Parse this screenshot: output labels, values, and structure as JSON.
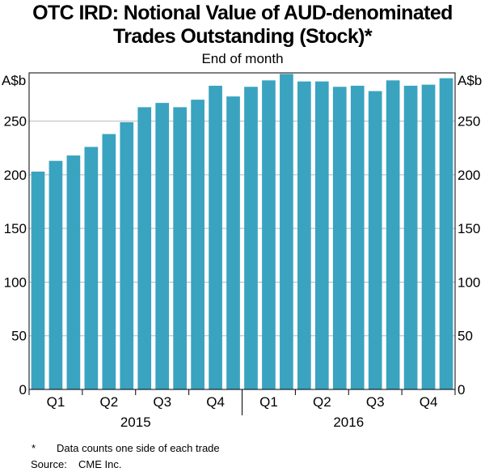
{
  "chart_data": {
    "type": "bar",
    "title_line1": "OTC IRD: Notional Value of AUD-denominated",
    "title_line2": "Trades Outstanding (Stock)*",
    "subtitle": "End of month",
    "ylabel_left": "A$b",
    "ylabel_right": "A$b",
    "ylim": [
      0,
      295
    ],
    "yticks": [
      0,
      50,
      100,
      150,
      200,
      250
    ],
    "grid": true,
    "categories": [
      "Jan 2015",
      "Feb 2015",
      "Mar 2015",
      "Apr 2015",
      "May 2015",
      "Jun 2015",
      "Jul 2015",
      "Aug 2015",
      "Sep 2015",
      "Oct 2015",
      "Nov 2015",
      "Dec 2015",
      "Jan 2016",
      "Feb 2016",
      "Mar 2016",
      "Apr 2016",
      "May 2016",
      "Jun 2016",
      "Jul 2016",
      "Aug 2016",
      "Sep 2016",
      "Oct 2016",
      "Nov 2016",
      "Dec 2016"
    ],
    "values": [
      203,
      213,
      218,
      226,
      238,
      249,
      263,
      267,
      263,
      270,
      283,
      273,
      282,
      288,
      294,
      287,
      287,
      282,
      283,
      278,
      288,
      283,
      284,
      290
    ],
    "quarter_labels": [
      "Q1",
      "Q2",
      "Q3",
      "Q4",
      "Q1",
      "Q2",
      "Q3",
      "Q4"
    ],
    "year_labels": [
      "2015",
      "2016"
    ],
    "bar_color": "#3aa3c0"
  },
  "footnote": {
    "marker": "*",
    "text": "Data counts one side of each trade"
  },
  "source": {
    "label": "Source:",
    "text": "CME Inc."
  }
}
